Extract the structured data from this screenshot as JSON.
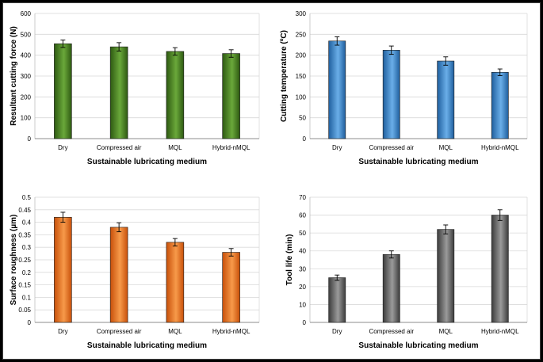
{
  "chart_data": [
    {
      "type": "bar",
      "categories": [
        "Dry",
        "Compressed air",
        "MQL",
        "Hybrid-nMQL"
      ],
      "values": [
        455,
        440,
        418,
        408
      ],
      "errors": [
        18,
        20,
        18,
        18
      ],
      "ylabel": "Resultant cutting force (N)",
      "xlabel": "Sustainable lubricating medium",
      "ylim": [
        0,
        600
      ],
      "ticks": [
        "0",
        "100",
        "200",
        "300",
        "400",
        "500",
        "600"
      ],
      "color_dark": "#2e5a12",
      "color_light": "#6aa83a"
    },
    {
      "type": "bar",
      "categories": [
        "Dry",
        "Compressed air",
        "MQL",
        "Hybrid-nMQL"
      ],
      "values": [
        234,
        212,
        186,
        159
      ],
      "errors": [
        10,
        10,
        10,
        8
      ],
      "ylabel": "Cutting temperature (ºC)",
      "xlabel": "Sustainable lubricating medium",
      "ylim": [
        0,
        300
      ],
      "ticks": [
        "0",
        "50",
        "100",
        "150",
        "200",
        "250",
        "300"
      ],
      "color_dark": "#1f5f9e",
      "color_light": "#6aaee8"
    },
    {
      "type": "bar",
      "categories": [
        "Dry",
        "Compressed air",
        "MQL",
        "Hybrid-nMQL"
      ],
      "values": [
        0.42,
        0.38,
        0.32,
        0.28
      ],
      "errors": [
        0.02,
        0.018,
        0.015,
        0.015
      ],
      "ylabel": "Surface roughness (µm)",
      "xlabel": "Sustainable lubricating medium",
      "ylim": [
        0,
        0.5
      ],
      "ticks": [
        "0",
        "0.05",
        "0.1",
        "0.15",
        "0.2",
        "0.25",
        "0.3",
        "0.35",
        "0.4",
        "0.45",
        "0.5"
      ],
      "color_dark": "#c8500a",
      "color_light": "#f79a4a"
    },
    {
      "type": "bar",
      "categories": [
        "Dry",
        "Compressed air",
        "MQL",
        "Hybrid-nMQL"
      ],
      "values": [
        25,
        38,
        52,
        60
      ],
      "errors": [
        1.5,
        2,
        2.5,
        3
      ],
      "ylabel": "Tool life (min)",
      "xlabel": "Sustainable lubricating medium",
      "ylim": [
        0,
        70
      ],
      "ticks": [
        "0",
        "10",
        "20",
        "30",
        "40",
        "50",
        "60",
        "70"
      ],
      "color_dark": "#3c3c3c",
      "color_light": "#9a9a9a"
    }
  ]
}
